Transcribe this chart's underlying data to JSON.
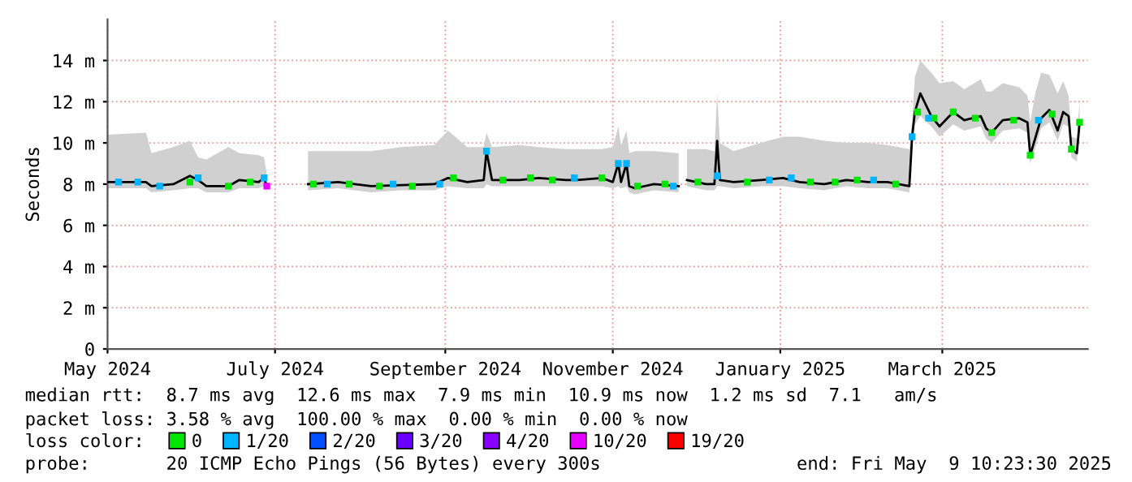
{
  "chart_data": {
    "type": "line",
    "ylabel": "Seconds",
    "xlim": [
      "2024-05-01",
      "2025-04-23"
    ],
    "xticks": [
      {
        "value": "2024-05-01",
        "label": "May 2024"
      },
      {
        "value": "2024-07-01",
        "label": "July 2024"
      },
      {
        "value": "2024-09-01",
        "label": "September 2024"
      },
      {
        "value": "2024-11-01",
        "label": "November 2024"
      },
      {
        "value": "2025-01-01",
        "label": "January 2025"
      },
      {
        "value": "2025-03-01",
        "label": "March 2025"
      }
    ],
    "ylim": [
      0,
      16
    ],
    "yticks": [
      0,
      {
        "value": 2,
        "label": "2 m"
      },
      {
        "value": 4,
        "label": "4 m"
      },
      {
        "value": 6,
        "label": "6 m"
      },
      {
        "value": 8,
        "label": "8 m"
      },
      {
        "value": 10,
        "label": "10 m"
      },
      {
        "value": 12,
        "label": "12 m"
      },
      {
        "value": 14,
        "label": "14 m"
      }
    ],
    "grid": true,
    "legend": "bottom",
    "series": [
      {
        "color": "#000000",
        "x": [
          "2024-05-01",
          "2024-05-15",
          "2024-05-17",
          "2024-05-25",
          "2024-05-31",
          "2024-06-03",
          "2024-06-06",
          "2024-06-14",
          "2024-06-18",
          "2024-06-25",
          "2024-06-27",
          "2024-06-28",
          "2024-07-05",
          "2024-07-13",
          "2024-07-24",
          "2024-08-05",
          "2024-08-16",
          "2024-08-28",
          "2024-09-02",
          "2024-09-09",
          "2024-09-15",
          "2024-09-16",
          "2024-09-18",
          "2024-09-28",
          "2024-10-05",
          "2024-10-15",
          "2024-10-19",
          "2024-10-28",
          "2024-11-01",
          "2024-11-03",
          "2024-11-04",
          "2024-11-06",
          "2024-11-07",
          "2024-11-09",
          "2024-11-16",
          "2024-11-25",
          "2024-11-27",
          "2024-11-28",
          "2024-12-05",
          "2024-12-08",
          "2024-12-09",
          "2024-12-10",
          "2024-12-15",
          "2024-12-25",
          "2025-01-02",
          "2025-01-08",
          "2025-01-17",
          "2025-01-25",
          "2025-02-02",
          "2025-02-09",
          "2025-02-17",
          "2025-02-18",
          "2025-02-19",
          "2025-02-21",
          "2025-02-25",
          "2025-02-28",
          "2025-03-05",
          "2025-03-09",
          "2025-03-15",
          "2025-03-17",
          "2025-03-19",
          "2025-03-23",
          "2025-03-29",
          "2025-04-01",
          "2025-04-02",
          "2025-04-04",
          "2025-04-06",
          "2025-04-09",
          "2025-04-12",
          "2025-04-14",
          "2025-04-16",
          "2025-04-17",
          "2025-04-19",
          "2025-04-20"
        ],
        "values": [
          8.1,
          8.1,
          7.9,
          8.0,
          8.4,
          8.2,
          7.9,
          7.9,
          8.2,
          8.1,
          8.3,
          7.9,
          null,
          8.0,
          8.1,
          7.9,
          7.95,
          8.0,
          8.3,
          8.1,
          8.2,
          9.6,
          8.2,
          8.2,
          8.3,
          8.2,
          8.2,
          8.3,
          8.1,
          9.0,
          8.1,
          9.0,
          7.9,
          7.8,
          8.0,
          7.9,
          null,
          8.2,
          8.0,
          8.0,
          10.1,
          8.2,
          8.1,
          8.2,
          8.3,
          8.1,
          8.0,
          8.2,
          8.1,
          8.1,
          7.9,
          10.3,
          11.5,
          12.4,
          11.3,
          10.8,
          11.5,
          11.1,
          11.3,
          10.7,
          10.5,
          11.1,
          11.2,
          11.0,
          9.4,
          10.3,
          11.2,
          11.6,
          10.6,
          11.5,
          11.3,
          9.7,
          9.5,
          11.0
        ],
        "lower": [
          7.8,
          7.8,
          7.6,
          7.7,
          7.8,
          7.8,
          7.6,
          7.6,
          7.8,
          7.8,
          7.9,
          7.6,
          null,
          7.7,
          7.8,
          7.6,
          7.7,
          7.7,
          7.9,
          7.8,
          7.8,
          8.0,
          7.9,
          7.9,
          7.9,
          7.9,
          7.9,
          7.9,
          7.8,
          7.9,
          7.8,
          7.9,
          7.6,
          7.5,
          7.7,
          7.6,
          null,
          7.9,
          7.7,
          7.7,
          7.9,
          7.9,
          7.8,
          7.9,
          7.9,
          7.8,
          7.7,
          7.9,
          7.8,
          7.8,
          7.6,
          9.8,
          10.9,
          11.3,
          10.8,
          10.3,
          10.9,
          10.6,
          10.8,
          10.2,
          10.0,
          10.6,
          10.7,
          10.5,
          9.0,
          9.8,
          10.7,
          11.0,
          10.1,
          10.9,
          10.8,
          9.3,
          9.1,
          10.5
        ],
        "upper": [
          10.4,
          10.5,
          9.5,
          9.8,
          10.1,
          9.3,
          9.2,
          9.8,
          9.5,
          9.4,
          9.3,
          8.5,
          null,
          9.6,
          9.6,
          9.6,
          9.8,
          9.9,
          10.6,
          9.8,
          9.8,
          10.5,
          9.8,
          9.9,
          9.8,
          9.7,
          9.7,
          9.7,
          9.8,
          10.8,
          9.9,
          10.6,
          9.5,
          9.6,
          9.6,
          9.5,
          null,
          9.7,
          9.7,
          9.6,
          12.4,
          10.0,
          9.6,
          10.0,
          10.3,
          10.3,
          10.1,
          10.0,
          10.0,
          9.9,
          9.7,
          11.0,
          13.2,
          14.0,
          13.4,
          12.9,
          13.0,
          12.6,
          13.1,
          12.5,
          12.5,
          12.9,
          12.7,
          12.3,
          11.0,
          12.5,
          13.4,
          13.3,
          12.4,
          13.0,
          12.3,
          10.3,
          10.2,
          12.1
        ]
      },
      {
        "name": "0",
        "type": "scatter",
        "color": "#00e600",
        "marker": "square",
        "x": [
          "2024-05-31",
          "2024-06-14",
          "2024-06-22",
          "2024-07-15",
          "2024-07-28",
          "2024-08-08",
          "2024-08-20",
          "2024-09-04",
          "2024-09-22",
          "2024-10-02",
          "2024-10-10",
          "2024-10-28",
          "2024-11-10",
          "2024-11-20",
          "2024-12-02",
          "2024-12-20",
          "2025-01-12",
          "2025-01-21",
          "2025-01-29",
          "2025-02-12",
          "2025-02-20",
          "2025-02-26",
          "2025-03-05",
          "2025-03-13",
          "2025-03-19",
          "2025-03-27",
          "2025-04-02",
          "2025-04-10",
          "2025-04-17",
          "2025-04-20"
        ],
        "values": [
          8.1,
          7.9,
          8.1,
          8.0,
          8.0,
          7.9,
          7.9,
          8.3,
          8.2,
          8.3,
          8.2,
          8.3,
          7.9,
          8.0,
          8.1,
          8.1,
          8.1,
          8.1,
          8.2,
          8.0,
          11.5,
          11.2,
          11.5,
          11.2,
          10.5,
          11.1,
          9.4,
          11.4,
          9.7,
          11.0
        ]
      },
      {
        "name": "1/20",
        "type": "scatter",
        "color": "#00b4ff",
        "marker": "square",
        "x": [
          "2024-05-05",
          "2024-05-12",
          "2024-05-20",
          "2024-06-03",
          "2024-06-27",
          "2024-07-20",
          "2024-08-13",
          "2024-08-30",
          "2024-09-16",
          "2024-10-18",
          "2024-11-03",
          "2024-11-06",
          "2024-11-23",
          "2024-12-09",
          "2024-12-28",
          "2025-01-05",
          "2025-02-04",
          "2025-02-18",
          "2025-02-24",
          "2025-04-05"
        ],
        "values": [
          8.1,
          8.1,
          7.9,
          8.3,
          8.3,
          8.0,
          8.0,
          8.0,
          9.6,
          8.3,
          9.0,
          9.0,
          7.9,
          8.4,
          8.2,
          8.3,
          8.2,
          10.3,
          11.2,
          11.1
        ]
      },
      {
        "name": "2/20",
        "type": "scatter",
        "color": "#0050ff",
        "marker": "square"
      },
      {
        "name": "3/20",
        "type": "scatter",
        "color": "#6a00ff",
        "marker": "square"
      },
      {
        "name": "4/20",
        "type": "scatter",
        "color": "#8a00ff",
        "marker": "square"
      },
      {
        "name": "10/20",
        "type": "scatter",
        "color": "#e600ff",
        "marker": "square",
        "x": [
          "2024-06-28"
        ],
        "values": [
          7.9
        ]
      },
      {
        "name": "19/20",
        "type": "scatter",
        "color": "#ff0000",
        "marker": "square"
      }
    ],
    "annotations": [
      "median rtt:  8.7 ms avg  12.6 ms max  7.9 ms min  10.9 ms now  1.2 ms sd  7.1   am/s",
      "packet loss: 3.58 % avg  100.00 % max  0.00 % min  0.00 % now",
      "loss color:",
      "probe:       20 ICMP Echo Pings (56 Bytes) every 300s",
      "end: Fri May  9 10:23:30 2025"
    ]
  }
}
